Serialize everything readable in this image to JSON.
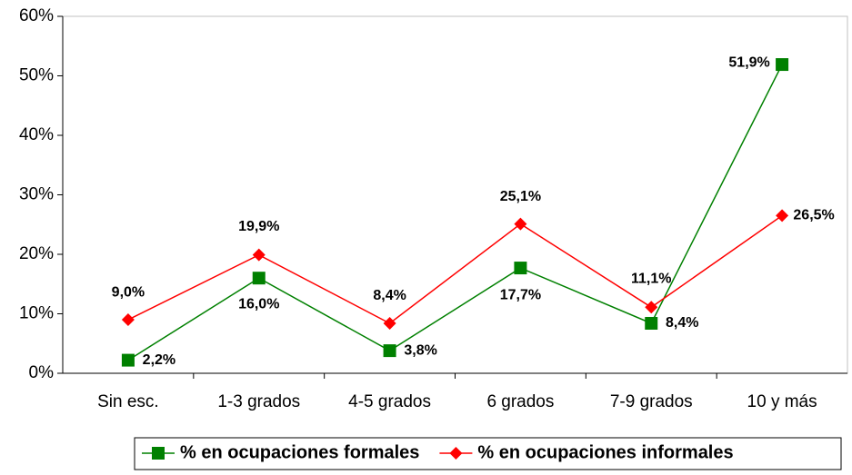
{
  "chart_data": {
    "type": "line",
    "categories": [
      "Sin esc.",
      "1-3 grados",
      "4-5 grados",
      "6 grados",
      "7-9 grados",
      "10 y más"
    ],
    "series": [
      {
        "name": "% en ocupaciones formales",
        "color": "#008000",
        "marker": "square",
        "values": [
          2.2,
          16.0,
          3.8,
          17.7,
          8.4,
          51.9
        ],
        "value_labels": [
          "2,2%",
          "16,0%",
          "3,8%",
          "17,7%",
          "8,4%",
          "51,9%"
        ]
      },
      {
        "name": "% en ocupaciones informales",
        "color": "#ff0000",
        "marker": "diamond",
        "values": [
          9.0,
          19.9,
          8.4,
          25.1,
          11.1,
          26.5
        ],
        "value_labels": [
          "9,0%",
          "19,9%",
          "8,4%",
          "25,1%",
          "11,1%",
          "26,5%"
        ]
      }
    ],
    "ylim": [
      0,
      60
    ],
    "yticks": [
      {
        "value": 0,
        "label": "0%"
      },
      {
        "value": 10,
        "label": "10%"
      },
      {
        "value": 20,
        "label": "20%"
      },
      {
        "value": 30,
        "label": "30%"
      },
      {
        "value": 40,
        "label": "40%"
      },
      {
        "value": 50,
        "label": "50%"
      },
      {
        "value": 60,
        "label": "60%"
      }
    ],
    "legend": "bottom"
  }
}
